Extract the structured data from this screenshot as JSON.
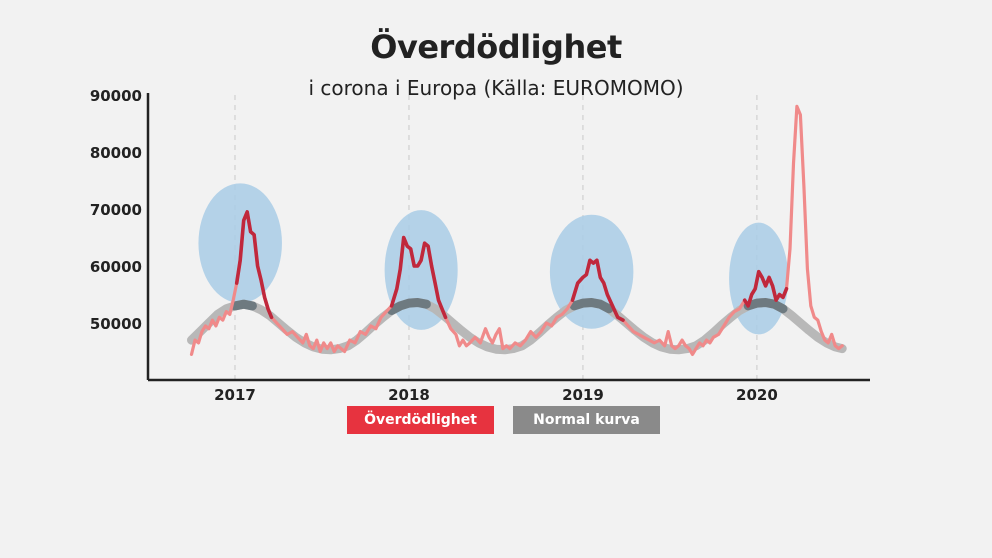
{
  "chart_data": {
    "type": "line",
    "title": "Överdödlighet",
    "subtitle": "i corona i Europa (Källa: EUROMOMO)",
    "y_ticks": [
      50000,
      60000,
      70000,
      80000,
      90000
    ],
    "ylim": [
      40000,
      90000
    ],
    "x_ticks": [
      "2017",
      "2018",
      "2019",
      "2020"
    ],
    "x_tick_pos": [
      2017.0,
      2018.0,
      2019.0,
      2020.0
    ],
    "xlim": [
      2016.5,
      2020.65
    ],
    "grid_x_dashed": true,
    "series": [
      {
        "name": "Överdödlighet",
        "color": "#f08a8a",
        "highlight_color": "#c0283c",
        "points": [
          [
            2016.75,
            44500
          ],
          [
            2016.77,
            47000
          ],
          [
            2016.79,
            46500
          ],
          [
            2016.81,
            48500
          ],
          [
            2016.83,
            49500
          ],
          [
            2016.85,
            49000
          ],
          [
            2016.87,
            50500
          ],
          [
            2016.89,
            49500
          ],
          [
            2016.91,
            51000
          ],
          [
            2016.93,
            50500
          ],
          [
            2016.95,
            52000
          ],
          [
            2016.97,
            51500
          ],
          [
            2016.99,
            54000
          ],
          [
            2017.01,
            57000
          ],
          [
            2017.03,
            61000
          ],
          [
            2017.05,
            68000
          ],
          [
            2017.07,
            69500
          ],
          [
            2017.09,
            66000
          ],
          [
            2017.11,
            65500
          ],
          [
            2017.13,
            60000
          ],
          [
            2017.15,
            57500
          ],
          [
            2017.17,
            54500
          ],
          [
            2017.19,
            52500
          ],
          [
            2017.21,
            51000
          ],
          [
            2017.24,
            50000
          ],
          [
            2017.27,
            49000
          ],
          [
            2017.3,
            48000
          ],
          [
            2017.33,
            48500
          ],
          [
            2017.36,
            47500
          ],
          [
            2017.39,
            46500
          ],
          [
            2017.41,
            48000
          ],
          [
            2017.43,
            46000
          ],
          [
            2017.45,
            45500
          ],
          [
            2017.47,
            47000
          ],
          [
            2017.49,
            45000
          ],
          [
            2017.51,
            46500
          ],
          [
            2017.53,
            45500
          ],
          [
            2017.55,
            46500
          ],
          [
            2017.57,
            45000
          ],
          [
            2017.59,
            46000
          ],
          [
            2017.61,
            45500
          ],
          [
            2017.63,
            45000
          ],
          [
            2017.66,
            47000
          ],
          [
            2017.69,
            46500
          ],
          [
            2017.72,
            48500
          ],
          [
            2017.75,
            48000
          ],
          [
            2017.78,
            49500
          ],
          [
            2017.81,
            49000
          ],
          [
            2017.84,
            51000
          ],
          [
            2017.87,
            52000
          ],
          [
            2017.9,
            53000
          ],
          [
            2017.93,
            56000
          ],
          [
            2017.95,
            59500
          ],
          [
            2017.97,
            65000
          ],
          [
            2017.99,
            63500
          ],
          [
            2018.01,
            63000
          ],
          [
            2018.03,
            60000
          ],
          [
            2018.05,
            60000
          ],
          [
            2018.07,
            61000
          ],
          [
            2018.09,
            64000
          ],
          [
            2018.11,
            63500
          ],
          [
            2018.13,
            60000
          ],
          [
            2018.15,
            57000
          ],
          [
            2018.17,
            54000
          ],
          [
            2018.19,
            52500
          ],
          [
            2018.21,
            51000
          ],
          [
            2018.24,
            49000
          ],
          [
            2018.27,
            48000
          ],
          [
            2018.29,
            46000
          ],
          [
            2018.31,
            47000
          ],
          [
            2018.33,
            46000
          ],
          [
            2018.35,
            46500
          ],
          [
            2018.38,
            47500
          ],
          [
            2018.41,
            46500
          ],
          [
            2018.44,
            49000
          ],
          [
            2018.46,
            47500
          ],
          [
            2018.48,
            46500
          ],
          [
            2018.5,
            48000
          ],
          [
            2018.52,
            49000
          ],
          [
            2018.54,
            45500
          ],
          [
            2018.56,
            46000
          ],
          [
            2018.58,
            45500
          ],
          [
            2018.61,
            46500
          ],
          [
            2018.64,
            46000
          ],
          [
            2018.67,
            47000
          ],
          [
            2018.7,
            48500
          ],
          [
            2018.73,
            47500
          ],
          [
            2018.76,
            48500
          ],
          [
            2018.79,
            50000
          ],
          [
            2018.82,
            49500
          ],
          [
            2018.85,
            51000
          ],
          [
            2018.88,
            51500
          ],
          [
            2018.91,
            52500
          ],
          [
            2018.94,
            54000
          ],
          [
            2018.97,
            57000
          ],
          [
            2019.0,
            58000
          ],
          [
            2019.02,
            58500
          ],
          [
            2019.04,
            61000
          ],
          [
            2019.06,
            60500
          ],
          [
            2019.08,
            61000
          ],
          [
            2019.1,
            58000
          ],
          [
            2019.12,
            57000
          ],
          [
            2019.14,
            55000
          ],
          [
            2019.17,
            53000
          ],
          [
            2019.2,
            51000
          ],
          [
            2019.23,
            50500
          ],
          [
            2019.26,
            49500
          ],
          [
            2019.29,
            48500
          ],
          [
            2019.32,
            48000
          ],
          [
            2019.35,
            47500
          ],
          [
            2019.38,
            47000
          ],
          [
            2019.41,
            46500
          ],
          [
            2019.44,
            47000
          ],
          [
            2019.47,
            46000
          ],
          [
            2019.49,
            48500
          ],
          [
            2019.51,
            46000
          ],
          [
            2019.53,
            45500
          ],
          [
            2019.55,
            46000
          ],
          [
            2019.57,
            47000
          ],
          [
            2019.59,
            46000
          ],
          [
            2019.61,
            45500
          ],
          [
            2019.63,
            44500
          ],
          [
            2019.65,
            45500
          ],
          [
            2019.67,
            46500
          ],
          [
            2019.69,
            46000
          ],
          [
            2019.71,
            47000
          ],
          [
            2019.73,
            46500
          ],
          [
            2019.75,
            47500
          ],
          [
            2019.78,
            48000
          ],
          [
            2019.81,
            49500
          ],
          [
            2019.84,
            51000
          ],
          [
            2019.87,
            52000
          ],
          [
            2019.9,
            52500
          ],
          [
            2019.93,
            54000
          ],
          [
            2019.95,
            53000
          ],
          [
            2019.97,
            55000
          ],
          [
            2019.99,
            56000
          ],
          [
            2020.01,
            59000
          ],
          [
            2020.03,
            58000
          ],
          [
            2020.05,
            56500
          ],
          [
            2020.07,
            58000
          ],
          [
            2020.09,
            56500
          ],
          [
            2020.11,
            54000
          ],
          [
            2020.13,
            55000
          ],
          [
            2020.15,
            54500
          ],
          [
            2020.17,
            56000
          ],
          [
            2020.19,
            63000
          ],
          [
            2020.21,
            78000
          ],
          [
            2020.23,
            88000
          ],
          [
            2020.25,
            86500
          ],
          [
            2020.27,
            74000
          ],
          [
            2020.29,
            59500
          ],
          [
            2020.31,
            53000
          ],
          [
            2020.33,
            51000
          ],
          [
            2020.35,
            50500
          ],
          [
            2020.37,
            48500
          ],
          [
            2020.39,
            47000
          ],
          [
            2020.41,
            46500
          ],
          [
            2020.43,
            48000
          ],
          [
            2020.45,
            46000
          ],
          [
            2020.47,
            45500
          ],
          [
            2020.49,
            46000
          ]
        ],
        "highlight_ranges": [
          [
            2017.01,
            2017.21
          ],
          [
            2017.9,
            2018.21
          ],
          [
            2018.94,
            2019.23
          ],
          [
            2019.93,
            2020.17
          ]
        ]
      },
      {
        "name": "Normal kurva",
        "color": "#b8b8b8",
        "highlight_color": "#6e7a80",
        "points": [
          [
            2016.75,
            47000
          ],
          [
            2016.8,
            48500
          ],
          [
            2016.85,
            50000
          ],
          [
            2016.9,
            51500
          ],
          [
            2016.95,
            52500
          ],
          [
            2017.0,
            53000
          ],
          [
            2017.05,
            53300
          ],
          [
            2017.1,
            53000
          ],
          [
            2017.15,
            52300
          ],
          [
            2017.2,
            51300
          ],
          [
            2017.25,
            50000
          ],
          [
            2017.3,
            48700
          ],
          [
            2017.35,
            47500
          ],
          [
            2017.4,
            46500
          ],
          [
            2017.45,
            45800
          ],
          [
            2017.5,
            45400
          ],
          [
            2017.55,
            45300
          ],
          [
            2017.6,
            45500
          ],
          [
            2017.65,
            46000
          ],
          [
            2017.7,
            47000
          ],
          [
            2017.75,
            48300
          ],
          [
            2017.8,
            49700
          ],
          [
            2017.85,
            51000
          ],
          [
            2017.9,
            52200
          ],
          [
            2017.95,
            53000
          ],
          [
            2018.0,
            53500
          ],
          [
            2018.05,
            53600
          ],
          [
            2018.1,
            53300
          ],
          [
            2018.15,
            52500
          ],
          [
            2018.2,
            51300
          ],
          [
            2018.25,
            50000
          ],
          [
            2018.3,
            48700
          ],
          [
            2018.35,
            47500
          ],
          [
            2018.4,
            46500
          ],
          [
            2018.45,
            45800
          ],
          [
            2018.5,
            45400
          ],
          [
            2018.55,
            45300
          ],
          [
            2018.6,
            45500
          ],
          [
            2018.65,
            46000
          ],
          [
            2018.7,
            47000
          ],
          [
            2018.75,
            48300
          ],
          [
            2018.8,
            49700
          ],
          [
            2018.85,
            51000
          ],
          [
            2018.9,
            52200
          ],
          [
            2018.95,
            53000
          ],
          [
            2019.0,
            53500
          ],
          [
            2019.05,
            53600
          ],
          [
            2019.1,
            53300
          ],
          [
            2019.15,
            52500
          ],
          [
            2019.2,
            51300
          ],
          [
            2019.25,
            50000
          ],
          [
            2019.3,
            48700
          ],
          [
            2019.35,
            47500
          ],
          [
            2019.4,
            46500
          ],
          [
            2019.45,
            45800
          ],
          [
            2019.5,
            45400
          ],
          [
            2019.55,
            45300
          ],
          [
            2019.6,
            45500
          ],
          [
            2019.65,
            46000
          ],
          [
            2019.7,
            47000
          ],
          [
            2019.75,
            48300
          ],
          [
            2019.8,
            49700
          ],
          [
            2019.85,
            51000
          ],
          [
            2019.9,
            52200
          ],
          [
            2019.95,
            53000
          ],
          [
            2020.0,
            53500
          ],
          [
            2020.05,
            53600
          ],
          [
            2020.1,
            53300
          ],
          [
            2020.15,
            52500
          ],
          [
            2020.2,
            51300
          ],
          [
            2020.25,
            50000
          ],
          [
            2020.3,
            48700
          ],
          [
            2020.35,
            47500
          ],
          [
            2020.4,
            46500
          ],
          [
            2020.45,
            45800
          ],
          [
            2020.49,
            45500
          ]
        ],
        "highlight_ranges": [
          [
            2016.97,
            2017.13
          ],
          [
            2017.9,
            2018.13
          ],
          [
            2018.95,
            2019.17
          ],
          [
            2019.95,
            2020.17
          ]
        ]
      }
    ],
    "highlight_ellipses": [
      {
        "x_center": 2017.03,
        "y_center": 64000,
        "x_radius": 0.24,
        "y_radius": 10500
      },
      {
        "x_center": 2018.07,
        "y_center": 59300,
        "x_radius": 0.21,
        "y_radius": 10500
      },
      {
        "x_center": 2019.05,
        "y_center": 59000,
        "x_radius": 0.24,
        "y_radius": 10000
      },
      {
        "x_center": 2020.01,
        "y_center": 57800,
        "x_radius": 0.17,
        "y_radius": 9800
      }
    ],
    "ellipse_color": "#a9cce6",
    "legend": [
      {
        "label": "Överdödlighet",
        "color": "#e7333f"
      },
      {
        "label": "Normal kurva",
        "color": "#8a8a8a"
      }
    ],
    "legend_placement": "bottom-center"
  }
}
